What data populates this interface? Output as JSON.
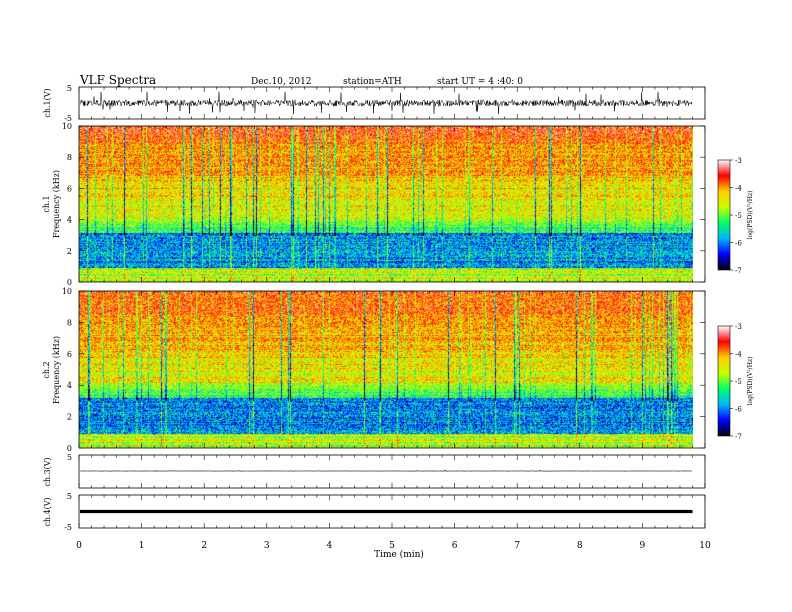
{
  "header": {
    "title": "VLF  Spectra",
    "date": "Dec.10, 2012",
    "station": "station=ATH",
    "start": "start  UT  =   4  :40: 0"
  },
  "chart_data": [
    {
      "id": "ch1-waveform",
      "type": "line",
      "ylabel": "ch.1(V)",
      "ylim": [
        -5,
        5
      ],
      "y_ticks": [
        "5",
        "-5"
      ],
      "xlim": [
        0,
        10
      ],
      "description_values": {
        "baseline": 0,
        "noise_amplitude_v": 1.2,
        "data_end_min": 9.8
      }
    },
    {
      "id": "ch1-spectrogram",
      "type": "heatmap",
      "ylabel": "ch.1\nFrequency (kHz)",
      "ylabel_lines": [
        "ch.1",
        "Frequency (kHz)"
      ],
      "ylim": [
        0,
        10
      ],
      "y_ticks": [
        "0",
        "2",
        "4",
        "6",
        "8",
        "10"
      ],
      "xlim": [
        0,
        10
      ],
      "colorbar": {
        "label": "log(PSD)(V²/Hz)",
        "ticks": [
          "-3",
          "-4",
          "-5",
          "-6",
          "-7"
        ],
        "range": [
          -7,
          -3
        ]
      }
    },
    {
      "id": "ch2-spectrogram",
      "type": "heatmap",
      "ylabel_lines": [
        "ch.2",
        "Frequency (kHz)"
      ],
      "ylim": [
        0,
        10
      ],
      "y_ticks": [
        "0",
        "2",
        "4",
        "6",
        "8",
        "10"
      ],
      "xlim": [
        0,
        10
      ],
      "colorbar": {
        "label": "log(PSD)(V²/Hz)",
        "ticks": [
          "-3",
          "-4",
          "-5",
          "-6",
          "-7"
        ],
        "range": [
          -7,
          -3
        ]
      }
    },
    {
      "id": "ch3-waveform",
      "type": "line",
      "ylabel": "ch.3(V)",
      "ylim": [
        -5,
        5
      ],
      "y_ticks": [
        "5"
      ],
      "xlim": [
        0,
        10
      ]
    },
    {
      "id": "ch4-waveform",
      "type": "line",
      "ylabel": "ch.4(V)",
      "ylim": [
        -5,
        5
      ],
      "y_ticks": [
        "5",
        "-5"
      ],
      "xlim": [
        0,
        10
      ],
      "xlabel": "Time  (min)",
      "x_ticks": [
        "0",
        "1",
        "2",
        "3",
        "4",
        "5",
        "6",
        "7",
        "8",
        "9",
        "10"
      ]
    }
  ],
  "colors": {
    "axis": "#000000",
    "trace": "#000000",
    "colormap": [
      "#000000",
      "#0000ff",
      "#00b4ff",
      "#00ff66",
      "#ccff00",
      "#ffcc00",
      "#ff0000",
      "#ffffff"
    ]
  }
}
